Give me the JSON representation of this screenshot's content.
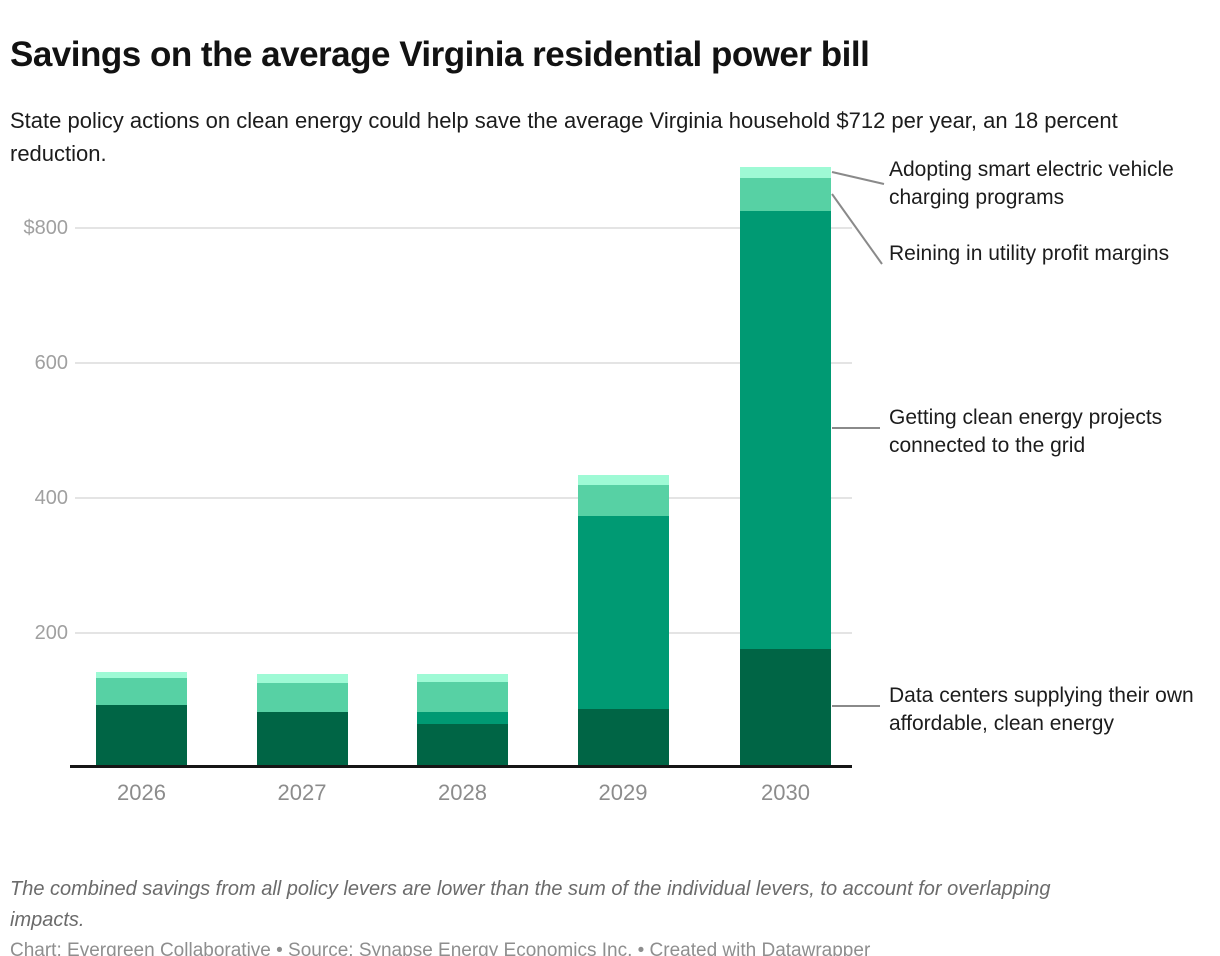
{
  "header": {
    "title": "Savings on the average Virginia residential power bill",
    "subtitle": "State policy actions on clean energy could help save the average Virginia household $712 per year, an 18 percent reduction."
  },
  "chart_data": {
    "type": "bar",
    "stacked": true,
    "title": "Savings on the average Virginia residential power bill",
    "categories": [
      "2026",
      "2027",
      "2028",
      "2029",
      "2030"
    ],
    "series": [
      {
        "name": "Data centers supplying their own affordable, clean energy",
        "color": "#006545",
        "values": [
          93,
          83,
          65,
          87,
          176
        ]
      },
      {
        "name": "Getting clean energy projects connected to the grid",
        "color": "#009a73",
        "values": [
          0,
          0,
          18,
          286,
          649
        ]
      },
      {
        "name": "Reining in utility profit margins",
        "color": "#57d1a4",
        "values": [
          40,
          42,
          44,
          46,
          49
        ]
      },
      {
        "name": "Adopting smart electric vehicle charging programs",
        "color": "#9efad5",
        "values": [
          9,
          13,
          12,
          15,
          16
        ]
      }
    ],
    "totals": [
      142,
      138,
      139,
      434,
      890
    ],
    "y_axis": {
      "ylim": [
        0,
        900
      ],
      "grid": true,
      "ticks": [
        {
          "value": 800,
          "label": "$800"
        },
        {
          "value": 600,
          "label": "600"
        },
        {
          "value": 400,
          "label": "400"
        },
        {
          "value": 200,
          "label": "200"
        }
      ]
    },
    "annotations": [
      {
        "label": "Adopting smart electric vehicle charging programs"
      },
      {
        "label": "Reining in utility profit margins"
      },
      {
        "label": "Getting clean energy projects connected to the grid"
      },
      {
        "label": "Data centers supplying their own affordable, clean energy"
      }
    ],
    "legend_position": "right-annotations"
  },
  "footer": {
    "note": "The combined savings from all policy levers are lower than the sum of the individual levers, to account for overlapping impacts.",
    "credits": "Chart: Evergreen Collaborative • Source: Synapse Energy Economics Inc. • Created with Datawrapper"
  },
  "colors": {
    "axis_line": "#161616",
    "gridline": "#e4e4e4",
    "tick_label": "#a0a0a0",
    "connector_line": "#8a8a8a"
  }
}
